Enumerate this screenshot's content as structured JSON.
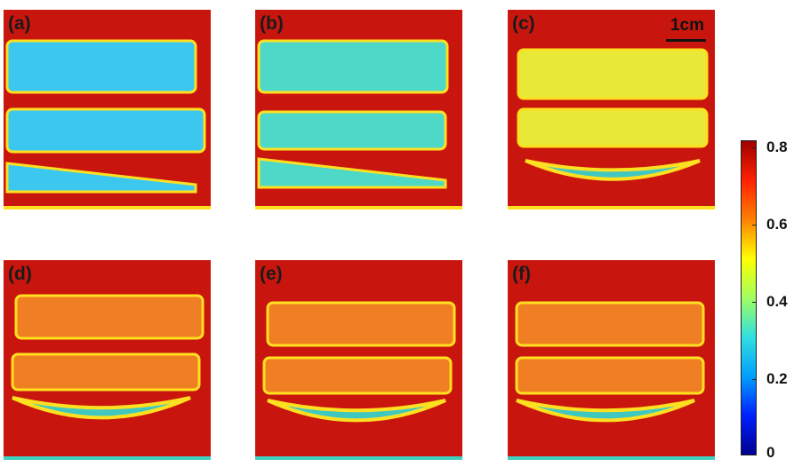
{
  "panels": [
    {
      "label": "(a)",
      "theme": "blue"
    },
    {
      "label": "(b)",
      "theme": "teal"
    },
    {
      "label": "(c)",
      "theme": "yellow"
    },
    {
      "label": "(d)",
      "theme": "orange"
    },
    {
      "label": "(e)",
      "theme": "orange"
    },
    {
      "label": "(f)",
      "theme": "orange"
    }
  ],
  "scale_bar": {
    "label": "1cm"
  },
  "colorbar": {
    "ticks": [
      "0.8",
      "0.6",
      "0.4",
      "0.2",
      "0"
    ],
    "min": 0,
    "max": 0.8,
    "colors": [
      "#00008f",
      "#0020ff",
      "#00a0ff",
      "#30e0e0",
      "#a0ff60",
      "#ffff00",
      "#ff8000",
      "#ff2000",
      "#a00000"
    ]
  },
  "colors": {
    "background": "#c8160e",
    "blue": "#3cc8ee",
    "teal": "#4ed8c8",
    "yellow": "#e8e838",
    "orange": "#f07e22",
    "rim": "#ffe020"
  }
}
